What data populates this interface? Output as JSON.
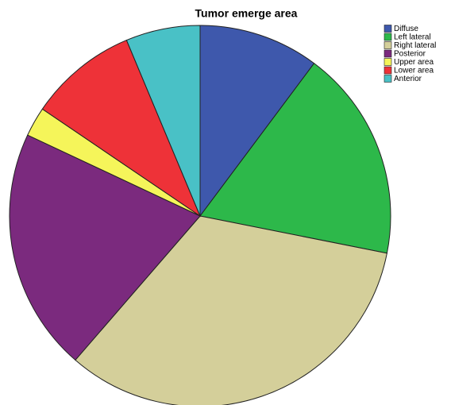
{
  "chart_data": {
    "type": "pie",
    "title": "Tumor emerge area",
    "categories": [
      "Diffuse",
      "Left lateral",
      "Right lateral",
      "Posterior",
      "Upper area",
      "Lower area",
      "Anterior"
    ],
    "values": [
      10.2,
      17.9,
      33.2,
      20.6,
      2.5,
      9.2,
      6.3
    ],
    "colors": [
      "#3e58ac",
      "#2db84a",
      "#d4cf9a",
      "#7b2a7e",
      "#f5f55a",
      "#ee3238",
      "#49c1c6"
    ],
    "legend": "top-right"
  }
}
